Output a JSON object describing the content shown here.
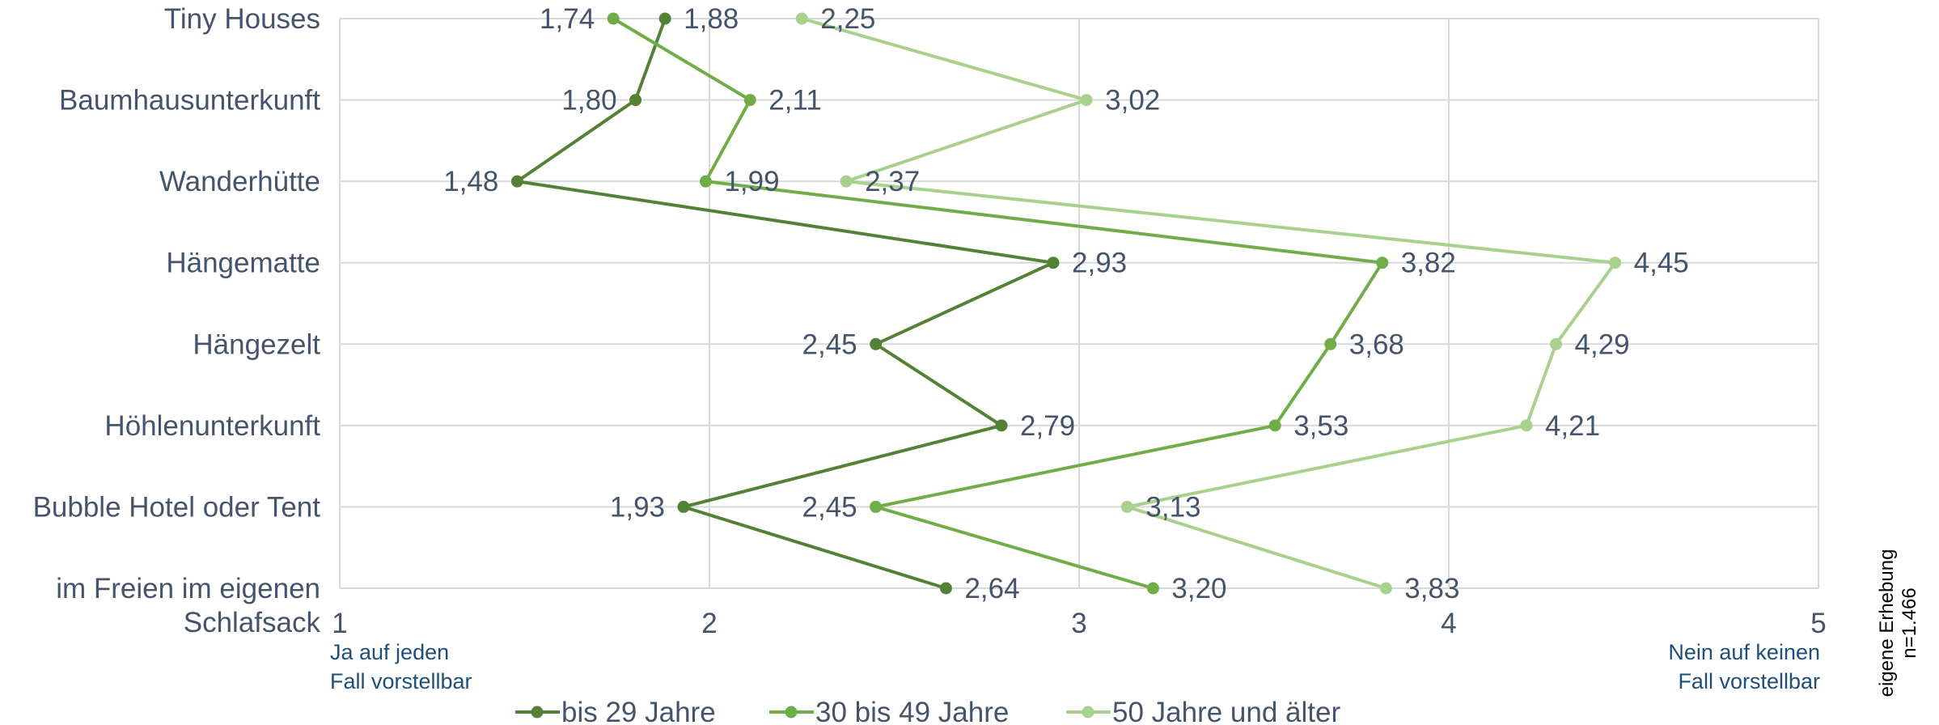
{
  "chart_data": {
    "type": "line",
    "orientation": "horizontal-values",
    "categories": [
      "Tiny Houses",
      "Baumhausunterkunft",
      "Wanderhütte",
      "Hängematte",
      "Hängezelt",
      "Höhlenunterkunft",
      "Bubble Hotel oder Tent",
      "im Freien im eigenen Schlafsack"
    ],
    "category_lines": [
      [
        "Tiny Houses"
      ],
      [
        "Baumhausunterkunft"
      ],
      [
        "Wanderhütte"
      ],
      [
        "Hängematte"
      ],
      [
        "Hängezelt"
      ],
      [
        "Höhlenunterkunft"
      ],
      [
        "Bubble Hotel oder Tent"
      ],
      [
        "im Freien im eigenen",
        "Schlafsack"
      ]
    ],
    "xlim": [
      1,
      5
    ],
    "xticks": [
      "1",
      "2",
      "3",
      "4",
      "5"
    ],
    "grid": true,
    "legend_position": "bottom",
    "scale_low_label": [
      "Ja auf jeden",
      "Fall vorstellbar"
    ],
    "scale_high_label": [
      "Nein auf keinen",
      "Fall vorstellbar"
    ],
    "source_note": [
      "eigene Erhebung",
      "n=1.466"
    ],
    "series": [
      {
        "name": "bis 29 Jahre",
        "color": "#548235",
        "values": [
          1.88,
          1.8,
          1.48,
          2.93,
          2.45,
          2.79,
          1.93,
          2.64
        ],
        "labels": [
          "1,88",
          "1,80",
          "1,48",
          "2,93",
          "2,45",
          "2,79",
          "1,93",
          "2,64"
        ],
        "label_side": [
          "right",
          "left",
          "left",
          "right",
          "left",
          "right",
          "left",
          "right"
        ]
      },
      {
        "name": "30 bis 49 Jahre",
        "color": "#70ad47",
        "values": [
          1.74,
          2.11,
          1.99,
          3.82,
          3.68,
          3.53,
          2.45,
          3.2
        ],
        "labels": [
          "1,74",
          "2,11",
          "1,99",
          "3,82",
          "3,68",
          "3,53",
          "2,45",
          "3,20"
        ],
        "label_side": [
          "left",
          "right",
          "right",
          "right",
          "right",
          "right",
          "left",
          "right"
        ]
      },
      {
        "name": "50 Jahre und älter",
        "color": "#a9d18e",
        "values": [
          2.25,
          3.02,
          2.37,
          4.45,
          4.29,
          4.21,
          3.13,
          3.83
        ],
        "labels": [
          "2,25",
          "3,02",
          "2,37",
          "4,45",
          "4,29",
          "4,21",
          "3,13",
          "3,83"
        ],
        "label_side": [
          "right",
          "right",
          "right",
          "right",
          "right",
          "right",
          "right",
          "right"
        ]
      }
    ]
  }
}
